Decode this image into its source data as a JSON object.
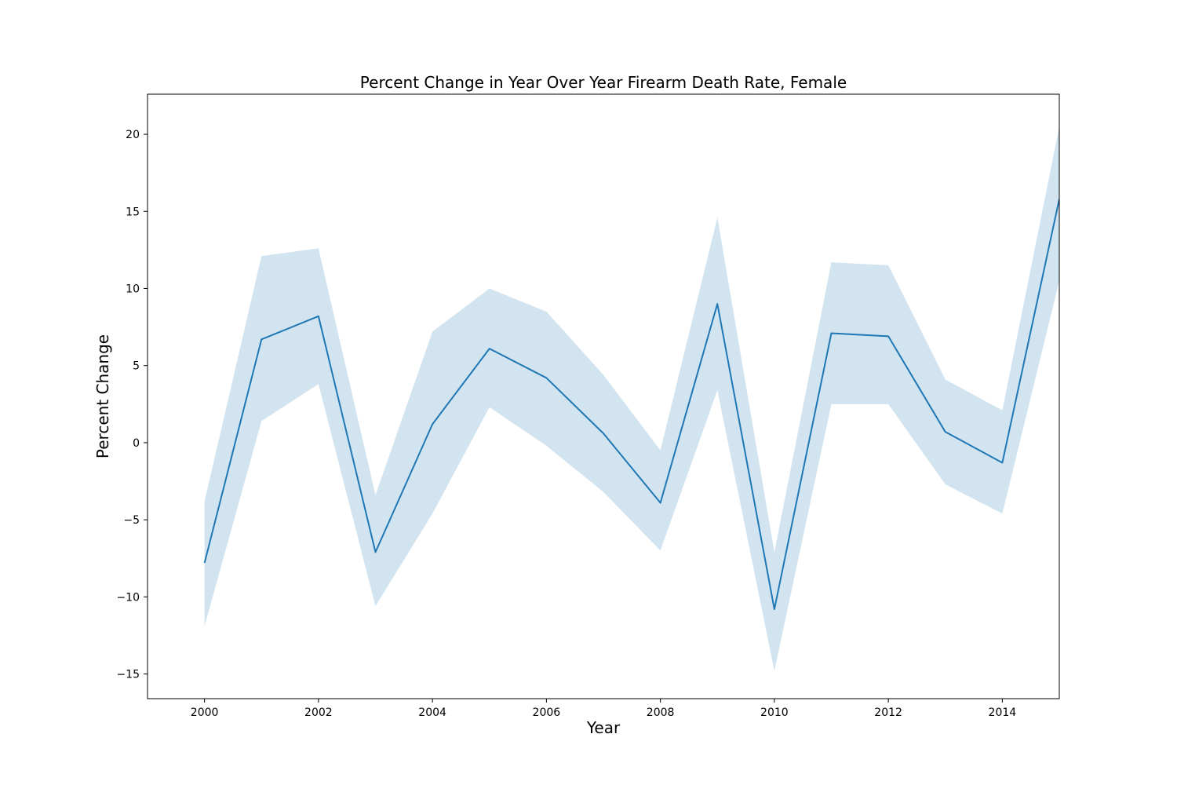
{
  "chart_data": {
    "type": "line",
    "title": "Percent Change in Year Over Year Firearm Death Rate, Female",
    "xlabel": "Year",
    "ylabel": "Percent Change",
    "xlim": [
      1999,
      2015
    ],
    "ylim": [
      -16.6,
      22.6
    ],
    "x_ticks": [
      2000,
      2002,
      2004,
      2006,
      2008,
      2010,
      2012,
      2014
    ],
    "x_tick_labels": [
      "2000",
      "2002",
      "2004",
      "2006",
      "2008",
      "2010",
      "2012",
      "2014"
    ],
    "y_ticks": [
      -15,
      -10,
      -5,
      0,
      5,
      10,
      15,
      20
    ],
    "y_tick_labels": [
      "−15",
      "−10",
      "−5",
      "0",
      "5",
      "10",
      "15",
      "20"
    ],
    "grid": false,
    "colors": {
      "line": "#1f77b4",
      "band": "#1f77b4",
      "band_opacity": 0.2
    },
    "series": [
      {
        "x": [
          2000,
          2001,
          2002,
          2003,
          2004,
          2005,
          2006,
          2007,
          2008,
          2009,
          2010,
          2011,
          2012,
          2013,
          2014,
          2015
        ],
        "values": [
          -7.8,
          6.7,
          8.2,
          -7.1,
          1.2,
          6.1,
          4.2,
          0.6,
          -3.9,
          9.0,
          -10.8,
          7.1,
          6.9,
          0.7,
          -1.3,
          15.8
        ],
        "lower": [
          -11.9,
          1.4,
          3.8,
          -10.6,
          -4.6,
          2.3,
          -0.2,
          -3.2,
          -7.0,
          3.4,
          -14.8,
          2.5,
          2.5,
          -2.7,
          -4.6,
          10.5
        ],
        "upper": [
          -3.8,
          12.1,
          12.6,
          -3.4,
          7.2,
          10.0,
          8.5,
          4.4,
          -0.5,
          14.6,
          -7.1,
          11.7,
          11.5,
          4.1,
          2.1,
          20.5
        ]
      }
    ]
  }
}
